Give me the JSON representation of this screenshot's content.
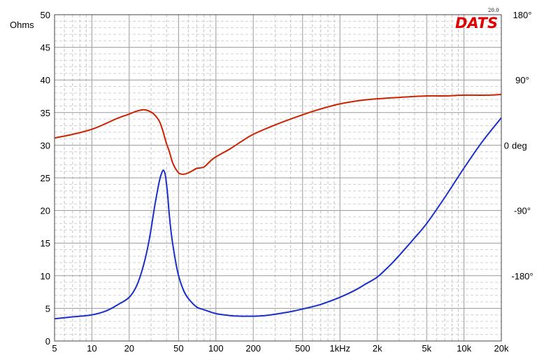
{
  "logo": {
    "text": "DATS",
    "version": "20.0",
    "color": "#e00000"
  },
  "chart_data": {
    "type": "line",
    "xscale": "log",
    "xlim": [
      5,
      20000
    ],
    "x_ticks": [
      {
        "value": 5,
        "label": "5"
      },
      {
        "value": 10,
        "label": "10"
      },
      {
        "value": 20,
        "label": "20"
      },
      {
        "value": 50,
        "label": "50"
      },
      {
        "value": 100,
        "label": "100"
      },
      {
        "value": 200,
        "label": "200"
      },
      {
        "value": 500,
        "label": "500"
      },
      {
        "value": 1000,
        "label": "1kHz"
      },
      {
        "value": 2000,
        "label": "2k"
      },
      {
        "value": 5000,
        "label": "5k"
      },
      {
        "value": 10000,
        "label": "10k"
      },
      {
        "value": 20000,
        "label": "20k"
      }
    ],
    "y_left": {
      "label": "Ohms",
      "lim": [
        0,
        50
      ],
      "ticks": [
        "0",
        "5",
        "10",
        "15",
        "20",
        "25",
        "30",
        "35",
        "40",
        "45",
        "50"
      ],
      "color": "#2233cc"
    },
    "y_right": {
      "unit_label": "deg",
      "unit_color": "#cc2200",
      "lim": [
        -270,
        180
      ],
      "ticks": [
        {
          "value": 180,
          "label": "180°"
        },
        {
          "value": 90,
          "label": "90°"
        },
        {
          "value": 0,
          "label": "0"
        },
        {
          "value": -90,
          "label": "-90°"
        },
        {
          "value": -180,
          "label": "-180°"
        }
      ]
    },
    "grid": true,
    "series": [
      {
        "axis": "left",
        "color": "#1a2ec8",
        "x": [
          5,
          7,
          10,
          13,
          16,
          20,
          23,
          26,
          29,
          32,
          35,
          37,
          38,
          39,
          40,
          41,
          42,
          44,
          47,
          50,
          55,
          60,
          70,
          80,
          100,
          130,
          160,
          200,
          250,
          300,
          400,
          500,
          700,
          1000,
          1300,
          1600,
          2000,
          2500,
          3000,
          4000,
          5000,
          7000,
          10000,
          14000,
          20000
        ],
        "y": [
          3.4,
          3.7,
          4.0,
          4.6,
          5.5,
          6.7,
          8.5,
          11.5,
          15.5,
          20.5,
          24.5,
          26.0,
          26.1,
          25.5,
          24.0,
          22.0,
          19.5,
          16.0,
          12.5,
          10.0,
          7.7,
          6.5,
          5.2,
          4.8,
          4.2,
          3.9,
          3.8,
          3.8,
          3.9,
          4.1,
          4.5,
          4.9,
          5.6,
          6.7,
          7.7,
          8.7,
          9.8,
          11.5,
          13.1,
          15.8,
          18.0,
          22.0,
          26.5,
          30.5,
          34.2
        ]
      },
      {
        "axis": "right",
        "color": "#cc2200",
        "x": [
          5,
          7,
          10,
          13,
          16,
          20,
          23,
          26,
          29,
          32,
          35,
          37,
          38,
          40,
          42,
          45,
          50,
          55,
          60,
          65,
          70,
          80,
          90,
          100,
          130,
          160,
          200,
          300,
          500,
          700,
          1000,
          1500,
          2000,
          3000,
          5000,
          7000,
          10000,
          15000,
          20000
        ],
        "y": [
          10,
          15,
          22,
          30,
          37,
          43,
          47,
          49,
          47,
          42,
          33,
          22,
          15,
          2,
          -8,
          -25,
          -38,
          -40,
          -38,
          -35,
          -32,
          -30,
          -22,
          -16,
          -5,
          5,
          15,
          28,
          42,
          50,
          57,
          62,
          64,
          66,
          68,
          68,
          69,
          69,
          70
        ]
      }
    ]
  }
}
